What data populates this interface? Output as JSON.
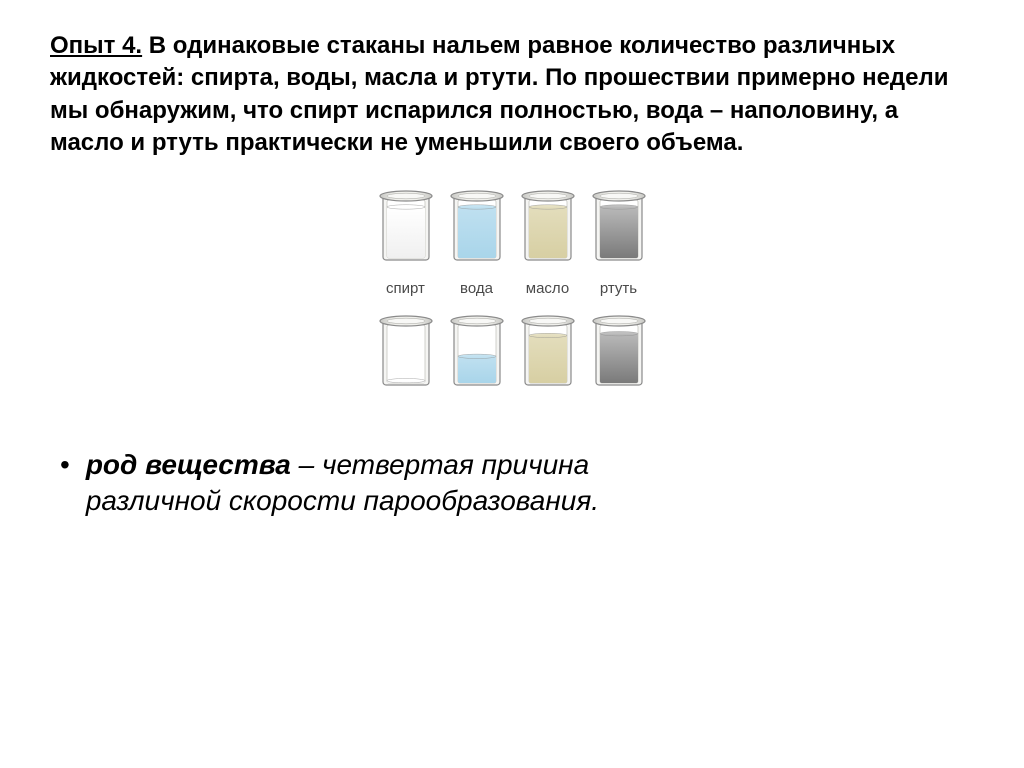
{
  "paragraph": {
    "title": "Опыт 4.",
    "text": " В одинаковые стаканы нальем равное количество различных жидкостей: спирта, воды, масла и ртути. По прошествии примерно недели мы обнаружим, что спирт испарился полностью, вода – наполовину, а масло и ртуть практически не уменьшили своего объема."
  },
  "diagram": {
    "labels": [
      "спирт",
      "вода",
      "масло",
      "ртуть"
    ],
    "beaker": {
      "total_height": 72,
      "outer_stroke": "#8a8a8a",
      "outer_fill": "#f5f5f3",
      "rim_color": "#d6d6d2",
      "inner_bg": "#ffffff"
    },
    "substances": [
      {
        "name": "alcohol",
        "color_top": "#ffffff",
        "color_bottom": "#f0f0f0"
      },
      {
        "name": "water",
        "color_top": "#bfe0f0",
        "color_bottom": "#a9d5ea"
      },
      {
        "name": "oil",
        "color_top": "#e3ddbc",
        "color_bottom": "#d7cfa3"
      },
      {
        "name": "mercury",
        "color_top": "#b9b9b9",
        "color_bottom": "#7a7a7a"
      }
    ],
    "rows": [
      {
        "fill_fractions": [
          0.88,
          0.88,
          0.88,
          0.88
        ]
      },
      {
        "fill_fractions": [
          0.04,
          0.46,
          0.82,
          0.85
        ]
      }
    ]
  },
  "bullet": {
    "bold": "род вещества",
    "rest1": " – четвертая причина",
    "rest2": "различной скорости парообразования."
  }
}
